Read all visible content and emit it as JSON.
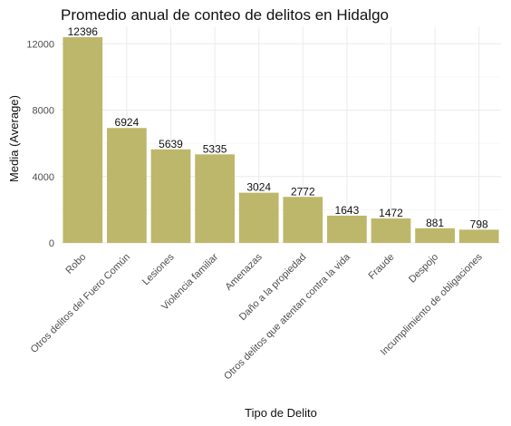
{
  "chart_data": {
    "type": "bar",
    "title": "Promedio anual de conteo de delitos en Hidalgo",
    "xlabel": "Tipo de Delito",
    "ylabel": "Media (Average)",
    "categories": [
      "Robo",
      "Otros delitos del Fuero Común",
      "Lesiones",
      "Violencia familiar",
      "Amenazas",
      "Daño a la propiedad",
      "Otros delitos que atentan contra la vida",
      "Fraude",
      "Despojo",
      "Incumplimiento de obligaciones"
    ],
    "values": [
      12396,
      6924,
      5639,
      5335,
      3024,
      2772,
      1643,
      1472,
      881,
      798
    ],
    "data_labels": [
      "12396",
      "6924",
      "5639",
      "5335",
      "3024",
      "2772",
      "1643",
      "1472",
      "881",
      "798"
    ],
    "yticks": [
      0,
      4000,
      8000,
      12000
    ],
    "ytick_labels": [
      "0",
      "4000",
      "8000",
      "12000"
    ],
    "ylim": [
      0,
      13000
    ],
    "grid": true,
    "bar_color": "#bdb76b"
  }
}
